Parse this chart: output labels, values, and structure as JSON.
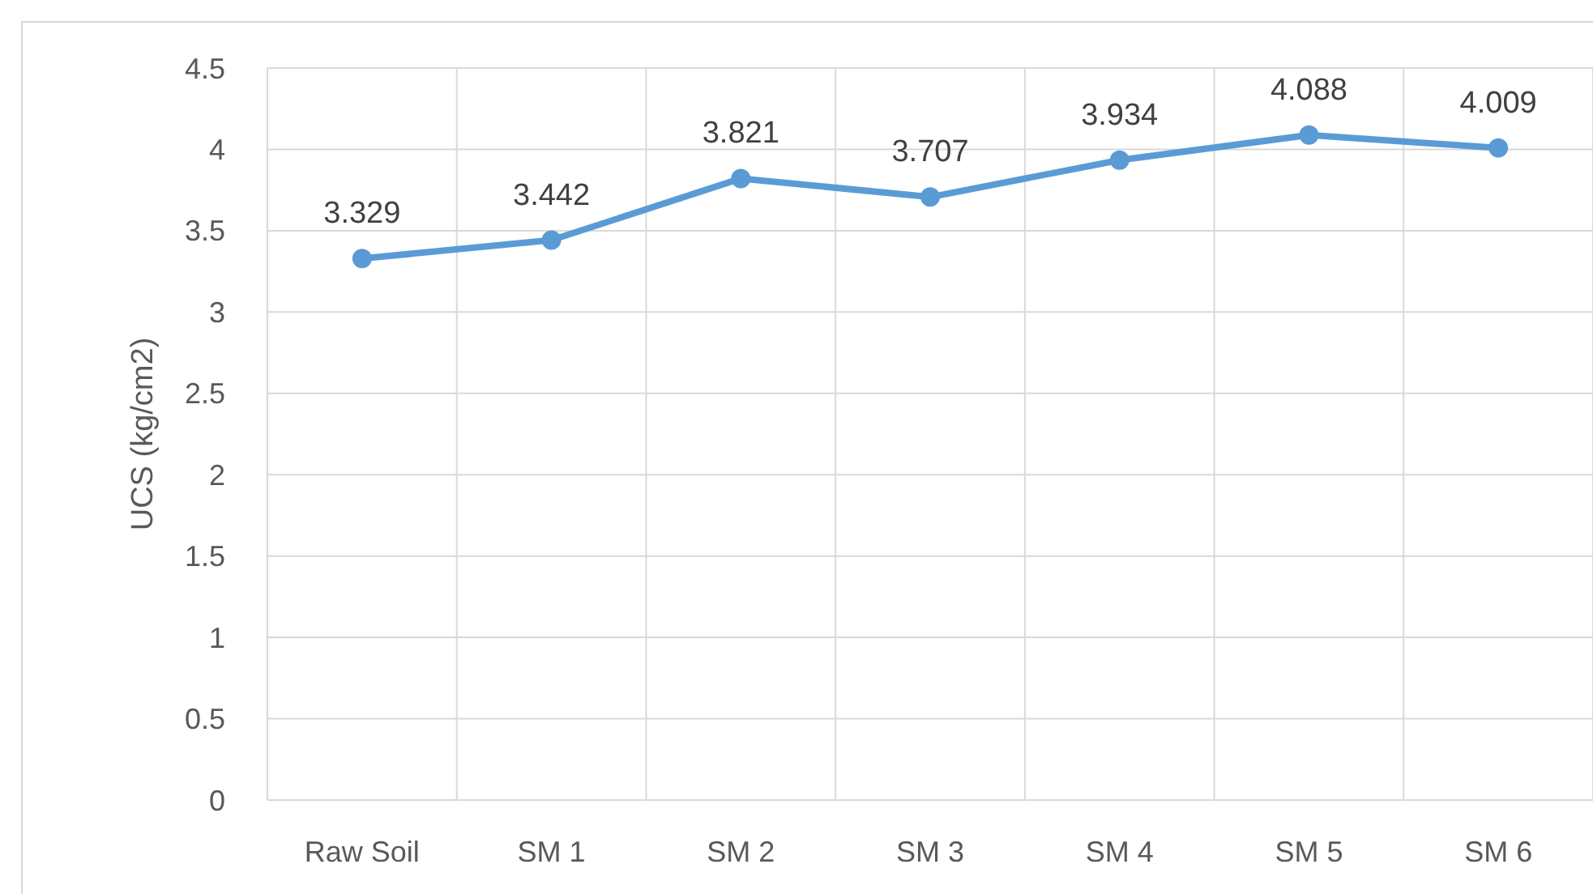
{
  "chart_data": {
    "type": "line",
    "ylabel": "UCS (kg/cm2)",
    "categories": [
      "Raw Soil",
      "SM 1",
      "SM 2",
      "SM 3",
      "SM 4",
      "SM 5",
      "SM 6"
    ],
    "series": [
      {
        "color": "#5b9bd5",
        "values": [
          3.329,
          3.442,
          3.821,
          3.707,
          3.934,
          4.088,
          4.009
        ]
      }
    ],
    "ylim": [
      0,
      4.5
    ],
    "yticks": [
      0,
      0.5,
      1,
      1.5,
      2,
      2.5,
      3,
      3.5,
      4,
      4.5
    ],
    "grid": true,
    "marker": "circle",
    "line_style": "solid",
    "data_labels": true
  }
}
